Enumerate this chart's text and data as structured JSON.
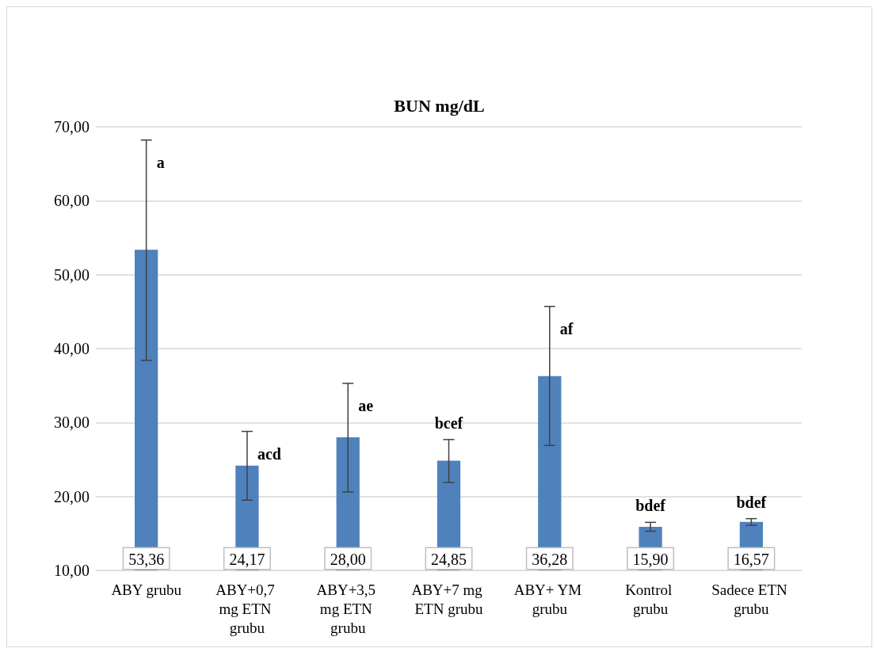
{
  "chart_data": {
    "type": "bar",
    "title": "BUN mg/dL",
    "categories": [
      "ABY grubu",
      "ABY+0,7 mg ETN grubu",
      "ABY+3,5 mg ETN grubu",
      "ABY+7 mg ETN grubu",
      "ABY+ YM grubu",
      "Kontrol grubu",
      "Sadece ETN grubu"
    ],
    "values": [
      53.36,
      24.17,
      28.0,
      24.85,
      36.28,
      15.9,
      16.57
    ],
    "value_labels": [
      "53,36",
      "24,17",
      "28,00",
      "24,85",
      "36,28",
      "15,90",
      "16,57"
    ],
    "errors": [
      [
        38.4,
        68.2
      ],
      [
        19.5,
        28.8
      ],
      [
        20.6,
        35.3
      ],
      [
        21.9,
        27.7
      ],
      [
        26.9,
        45.7
      ],
      [
        15.3,
        16.5
      ],
      [
        16.1,
        17.0
      ]
    ],
    "color": "#4f81bd",
    "ylim": [
      10,
      70
    ],
    "yticks": [
      {
        "value": 10,
        "label": "10,00"
      },
      {
        "value": 20,
        "label": "20,00"
      },
      {
        "value": 30,
        "label": "30,00"
      },
      {
        "value": 40,
        "label": "40,00"
      },
      {
        "value": 50,
        "label": "50,00"
      },
      {
        "value": 60,
        "label": "60,00"
      },
      {
        "value": 70,
        "label": "70,00"
      }
    ],
    "grid": "y",
    "annotations": [
      {
        "text": "a",
        "x": "ABY grubu",
        "y": 68.2
      },
      {
        "text": "acd",
        "x": "ABY+0,7 mg ETN grubu",
        "y": 28.8
      },
      {
        "text": "ae",
        "x": "ABY+3,5 mg ETN grubu",
        "y": 35.3
      },
      {
        "text": "bcef",
        "x": "ABY+7 mg ETN grubu",
        "y": 27.7
      },
      {
        "text": "af",
        "x": "ABY+ YM grubu",
        "y": 45.7
      },
      {
        "text": "bdef",
        "x": "Kontrol grubu",
        "y": 16.5
      },
      {
        "text": "bdef",
        "x": "Sadece ETN grubu",
        "y": 17.0
      }
    ]
  }
}
